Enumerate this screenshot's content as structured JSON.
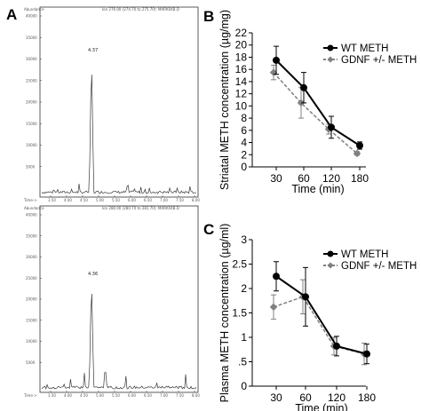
{
  "panel_labels": {
    "a": "A",
    "b": "B",
    "c": "C"
  },
  "chromatograms": [
    {
      "abundance_label": "Abundance",
      "header": "Ion 276.00 (274.70 to 275.70): MARK04B.D",
      "y_ticks": [
        "40000",
        "35000",
        "30000",
        "25000",
        "20000",
        "15000",
        "10000",
        "5000"
      ],
      "x_ticks": [
        "3.50",
        "4.00",
        "4.50",
        "5.00",
        "5.50",
        "6.00",
        "6.50",
        "7.00",
        "7.50",
        "8.00"
      ],
      "time_label": "Time->",
      "peak_label": "4.37",
      "color": "#3a3a3a"
    },
    {
      "abundance_label": "Abundance",
      "header": "Ion 280.00 (280.70 to 281.70): MARK04B.D",
      "y_ticks": [
        "40000",
        "35000",
        "30000",
        "25000",
        "20000",
        "15000",
        "10000",
        "5000"
      ],
      "x_ticks": [
        "3.50",
        "4.00",
        "4.50",
        "5.00",
        "5.50",
        "6.00",
        "6.50",
        "7.00",
        "7.50",
        "8.00"
      ],
      "time_label": "Time->",
      "peak_label": "4.36",
      "color": "#3a3a3a"
    }
  ],
  "chart_data": [
    {
      "type": "line",
      "panel": "B",
      "x": [
        "30",
        "60",
        "120",
        "180"
      ],
      "xlabel": "Time (min)",
      "ylabel": "Striatal METH concentration (µg/mg)",
      "yticks": [
        "0",
        "2",
        "4",
        "6",
        "8",
        "10",
        "12",
        "14",
        "16",
        "18",
        "20",
        "22"
      ],
      "ylim": [
        0,
        22
      ],
      "series": [
        {
          "name": "WT METH",
          "values": [
            17.5,
            13.0,
            6.5,
            3.5
          ],
          "err": [
            2.3,
            2.5,
            1.8,
            0.6
          ],
          "color": "#000000",
          "dash": "solid"
        },
        {
          "name": "GDNF +/- METH",
          "values": [
            15.5,
            10.5,
            6.2,
            2.2
          ],
          "err": [
            1.2,
            2.5,
            0.8,
            0.3
          ],
          "color": "#808080",
          "dash": "dashed"
        }
      ],
      "legend": "top-right"
    },
    {
      "type": "line",
      "panel": "C",
      "x": [
        "30",
        "60",
        "120",
        "180"
      ],
      "xlabel": "Time (min)",
      "ylabel": "Plasma METH concentration (µg/ml)",
      "yticks": [
        "0",
        ".5",
        "1",
        "1.5",
        "2",
        "2.5",
        "3"
      ],
      "ylim": [
        0,
        3
      ],
      "series": [
        {
          "name": "WT METH",
          "values": [
            2.25,
            1.83,
            0.82,
            0.66
          ],
          "err": [
            0.3,
            0.6,
            0.2,
            0.2
          ],
          "color": "#000000",
          "dash": "solid"
        },
        {
          "name": "GDNF +/- METH",
          "values": [
            1.62,
            1.83,
            0.82,
            0.66
          ],
          "err": [
            0.25,
            0.35,
            0.18,
            0.22
          ],
          "color": "#808080",
          "dash": "dashed"
        }
      ],
      "legend": "top-right"
    }
  ]
}
